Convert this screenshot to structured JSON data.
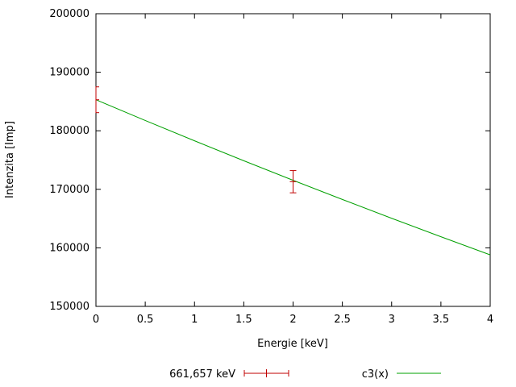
{
  "figure": {
    "background": "#ffffff",
    "border_color": "#000000",
    "legend": [
      {
        "label": "661,657 keV",
        "color": "#c00000",
        "style": "errorbars"
      },
      {
        "label": "c3(x)",
        "color": "#00a000",
        "style": "line"
      }
    ]
  },
  "chart_data": {
    "type": "line",
    "title": "",
    "xlabel": "Energie [keV]",
    "ylabel": "Intenzita [Imp]",
    "xlim": [
      0,
      4
    ],
    "ylim": [
      150000,
      200000
    ],
    "grid": false,
    "legend_position": "bottom-center",
    "xticks": [
      0,
      0.5,
      1,
      1.5,
      2,
      2.5,
      3,
      3.5,
      4
    ],
    "xtick_labels": [
      "0",
      "0.5",
      "1",
      "1.5",
      "2",
      "2.5",
      "3",
      "3.5",
      "4"
    ],
    "yticks": [
      150000,
      160000,
      170000,
      180000,
      190000,
      200000
    ],
    "ytick_labels": [
      "150000",
      "160000",
      "170000",
      "180000",
      "190000",
      "200000"
    ],
    "series": [
      {
        "name": "661,657 keV",
        "type": "errorbars",
        "color": "#c00000",
        "points": [
          {
            "x": 0,
            "y": 185300,
            "yerr": 2200
          },
          {
            "x": 2,
            "y": 171300,
            "yerr": 1900
          }
        ]
      },
      {
        "name": "c3(x)",
        "type": "line",
        "color": "#00a000",
        "x": [
          0,
          0.5,
          1,
          1.5,
          2,
          2.5,
          3,
          3.5,
          4
        ],
        "y": [
          185300,
          181760,
          178290,
          174880,
          171540,
          168270,
          165050,
          161900,
          158800
        ]
      }
    ]
  }
}
